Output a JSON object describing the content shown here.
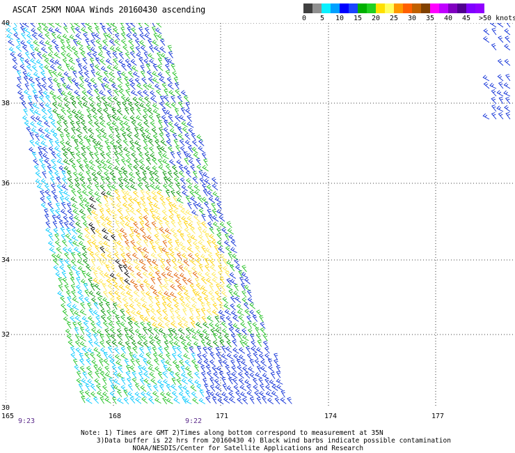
{
  "title": "ASCAT 25KM NOAA Winds 20160430 ascending",
  "legend": {
    "labels": [
      "0",
      "5",
      "10",
      "15",
      "20",
      "25",
      "30",
      "35",
      "40",
      "45",
      ">50 knots"
    ],
    "colors": [
      "#404040",
      "#909090",
      "#0af0ff",
      "#00a0ff",
      "#0000ff",
      "#1b44ff",
      "#00b000",
      "#20d020",
      "#ffe000",
      "#ffff60",
      "#ff9900",
      "#ff6000",
      "#c06000",
      "#804000",
      "#ff00ff",
      "#c000ff",
      "#8000c0",
      "#500090",
      "#8000ff",
      "#9000ff"
    ]
  },
  "axes": {
    "lat_labels": [
      "40",
      "38",
      "36",
      "34",
      "32",
      "30"
    ],
    "lon_labels": [
      "165",
      "168",
      "171",
      "174",
      "177"
    ]
  },
  "pass_times": [
    "9:23",
    "9:22"
  ],
  "notes": [
    "Note: 1) Times are GMT 2)Times along bottom correspond to measurement at 35N",
    "3)Data buffer is 22 hrs from 20160430 4) Black wind barbs indicate possible contamination",
    "NOAA/NESDIS/Center for Satellite Applications and Research"
  ]
}
